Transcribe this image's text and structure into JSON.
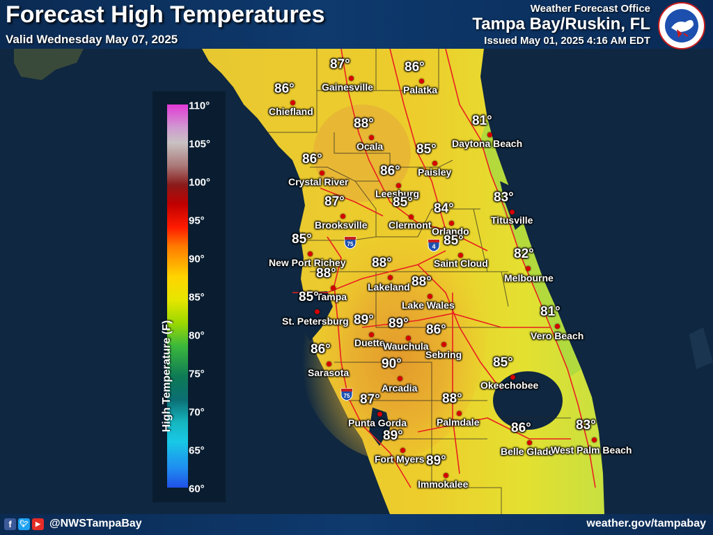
{
  "header": {
    "title": "Forecast High Temperatures",
    "valid": "Valid Wednesday May 07, 2025",
    "office_line": "Weather Forecast Office",
    "office_name": "Tampa Bay/Ruskin, FL",
    "issued": "Issued May 01, 2025 4:16 AM EDT"
  },
  "legend": {
    "title": "High Temperature (F)",
    "ticks": [
      "110°",
      "105°",
      "100°",
      "95°",
      "90°",
      "85°",
      "80°",
      "75°",
      "70°",
      "65°",
      "60°"
    ]
  },
  "highways": [
    "75",
    "4",
    "75"
  ],
  "cities": [
    {
      "name": "Gainesville",
      "temp": "87°"
    },
    {
      "name": "Palatka",
      "temp": "86°"
    },
    {
      "name": "Chiefland",
      "temp": "86°"
    },
    {
      "name": "Daytona Beach",
      "temp": "81°"
    },
    {
      "name": "Ocala",
      "temp": "88°"
    },
    {
      "name": "Paisley",
      "temp": "85°"
    },
    {
      "name": "Crystal River",
      "temp": "86°"
    },
    {
      "name": "Leesburg",
      "temp": "86°"
    },
    {
      "name": "Clermont",
      "temp": "85°"
    },
    {
      "name": "Orlando",
      "temp": "84°"
    },
    {
      "name": "Titusville",
      "temp": "83°"
    },
    {
      "name": "Brooksville",
      "temp": "87°"
    },
    {
      "name": "New Port Richey",
      "temp": "85°"
    },
    {
      "name": "Saint Cloud",
      "temp": "85°"
    },
    {
      "name": "Lakeland",
      "temp": "88°"
    },
    {
      "name": "Melbourne",
      "temp": "82°"
    },
    {
      "name": "Tampa",
      "temp": "88°"
    },
    {
      "name": "Lake Wales",
      "temp": "88°"
    },
    {
      "name": "St. Petersburg",
      "temp": "85°"
    },
    {
      "name": "Duette",
      "temp": "89°"
    },
    {
      "name": "Wauchula",
      "temp": "89°"
    },
    {
      "name": "Vero Beach",
      "temp": "81°"
    },
    {
      "name": "Sebring",
      "temp": "86°"
    },
    {
      "name": "Sarasota",
      "temp": "86°"
    },
    {
      "name": "Arcadia",
      "temp": "90°"
    },
    {
      "name": "Okeechobee",
      "temp": "85°"
    },
    {
      "name": "Punta Gorda",
      "temp": "87°"
    },
    {
      "name": "Palmdale",
      "temp": "88°"
    },
    {
      "name": "Fort Myers",
      "temp": "89°"
    },
    {
      "name": "Belle Glade",
      "temp": "86°"
    },
    {
      "name": "West Palm Beach",
      "temp": "83°"
    },
    {
      "name": "Immokalee",
      "temp": "89°"
    }
  ],
  "footer": {
    "social_icons": [
      "facebook-icon",
      "twitter-icon",
      "youtube-icon"
    ],
    "handle": "@NWSTampaBay",
    "website": "weather.gov/tampabay"
  }
}
